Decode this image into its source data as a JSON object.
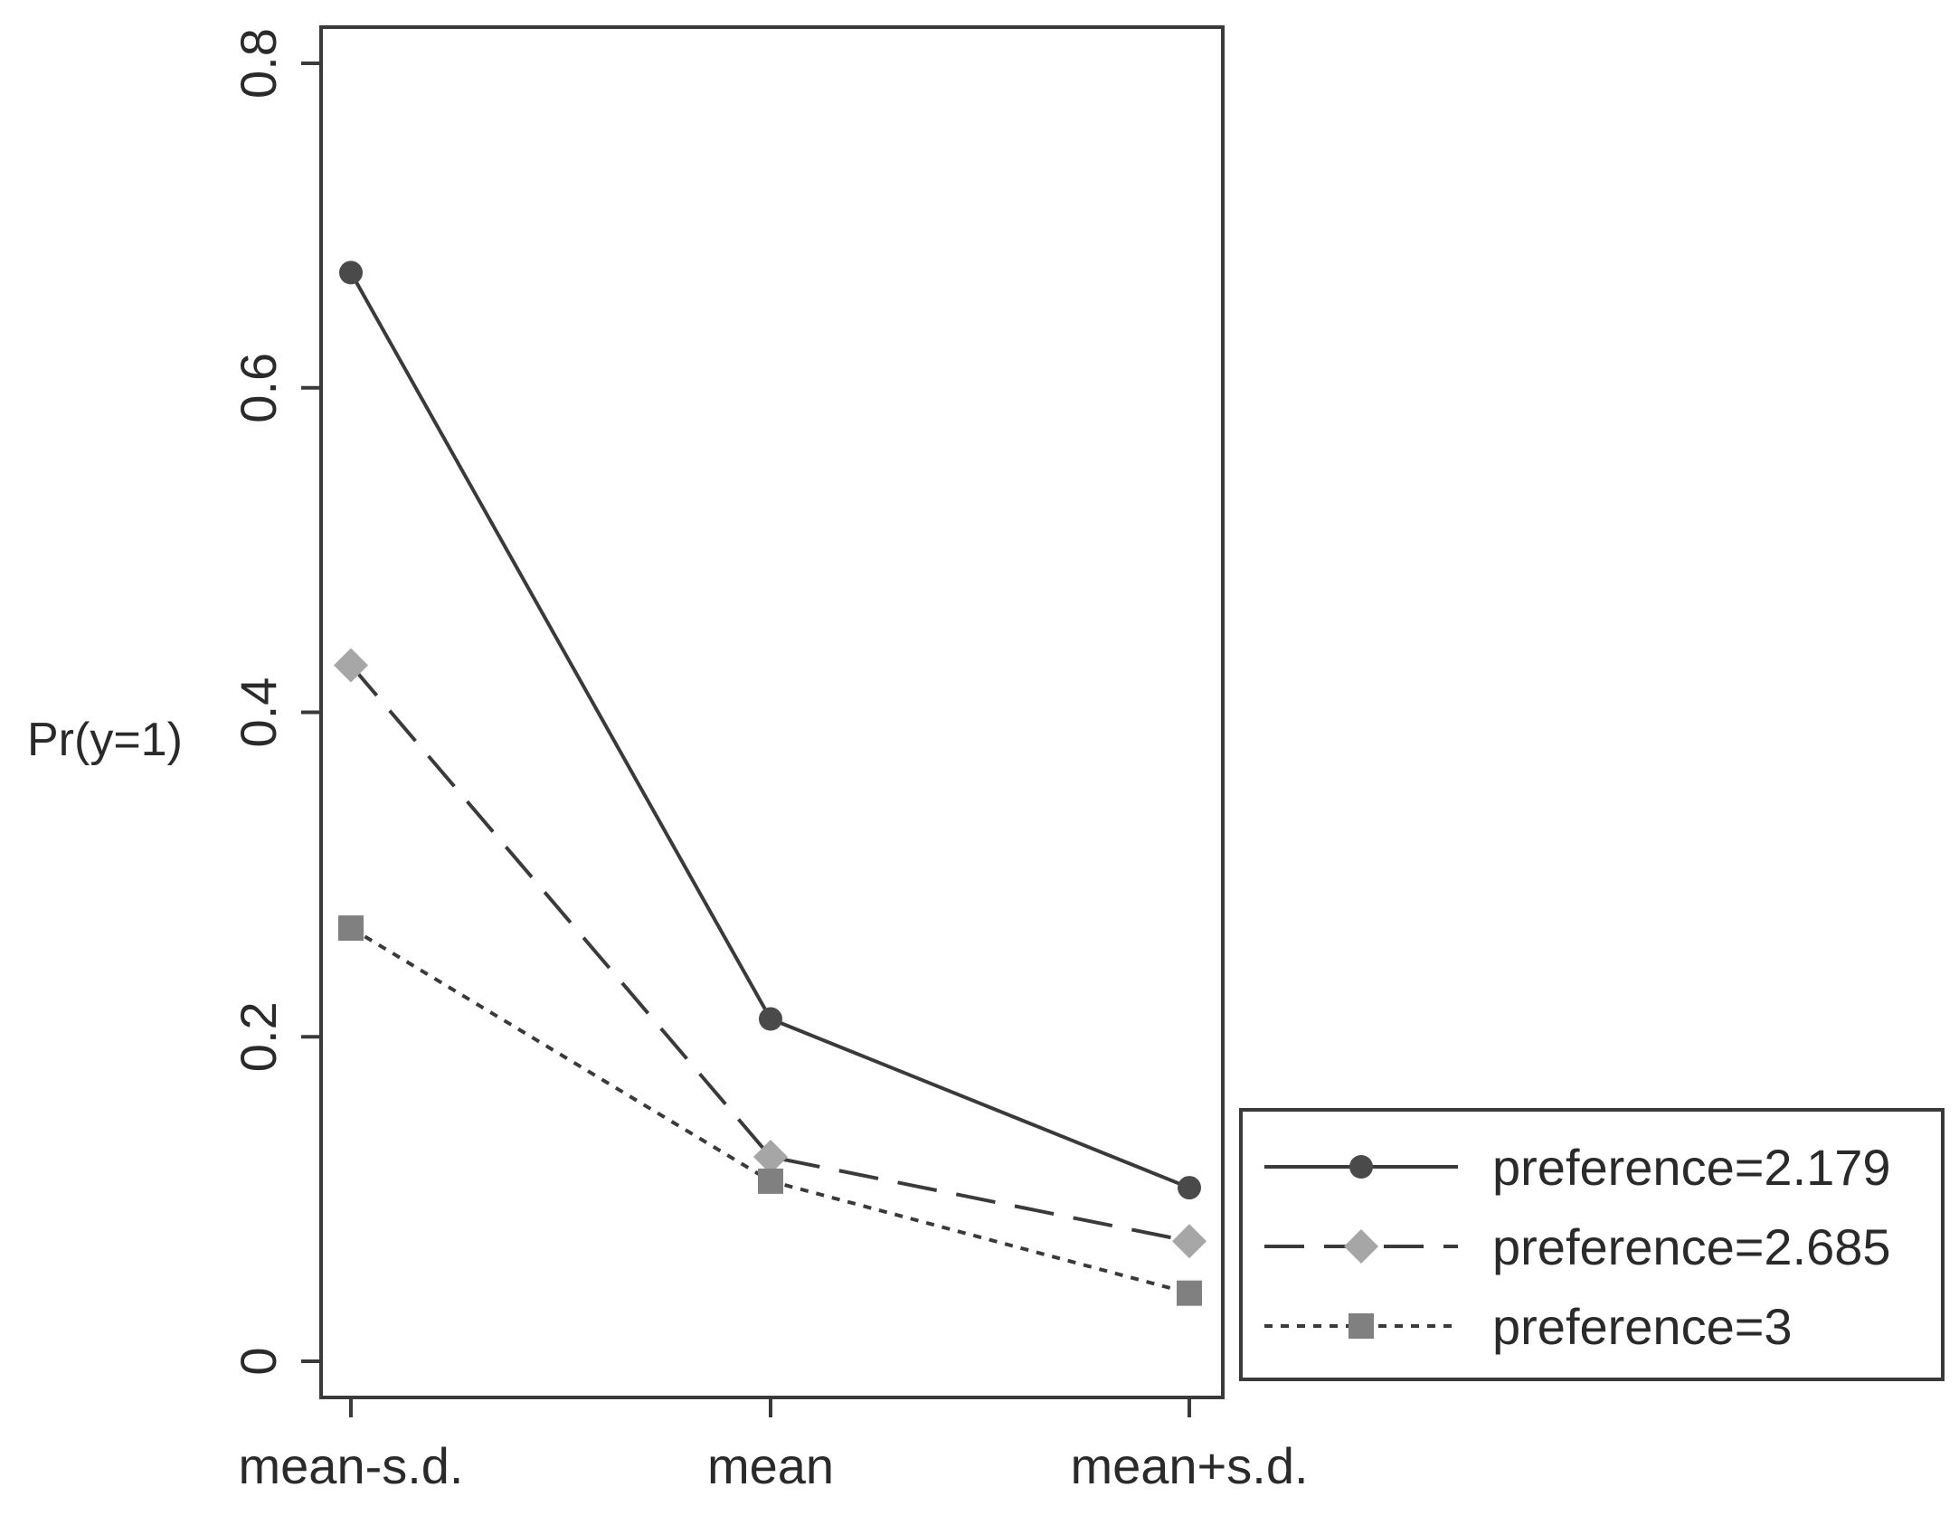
{
  "chart_data": {
    "type": "line",
    "title": "",
    "xlabel": "",
    "ylabel": "Pr(y=1)",
    "categories": [
      "mean-s.d.",
      "mean",
      "mean+s.d."
    ],
    "ylim": [
      0,
      0.8
    ],
    "yticks": [
      0,
      0.2,
      0.4,
      0.6,
      0.8
    ],
    "ytick_labels": [
      "0",
      "0.2",
      "0.4",
      "0.6",
      "0.8"
    ],
    "grid": false,
    "legend_position": "bottom-right, outside plot",
    "series": [
      {
        "name": "preference=2.179",
        "values": [
          0.671,
          0.211,
          0.107
        ],
        "line_style": "solid",
        "marker": "circle",
        "line_color": "#3a3a3a",
        "marker_color": "#4a4a4a"
      },
      {
        "name": "preference=2.685",
        "values": [
          0.429,
          0.126,
          0.074
        ],
        "line_style": "dashed",
        "marker": "diamond",
        "line_color": "#3a3a3a",
        "marker_color": "#a6a6a6"
      },
      {
        "name": "preference=3",
        "values": [
          0.267,
          0.111,
          0.042
        ],
        "line_style": "dotted",
        "marker": "square",
        "line_color": "#3a3a3a",
        "marker_color": "#808080"
      }
    ]
  }
}
